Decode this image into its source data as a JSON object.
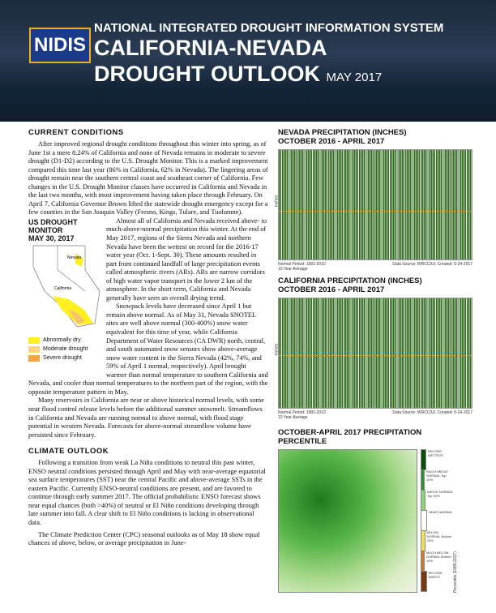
{
  "header": {
    "logo": "NIDIS",
    "org": "NATIONAL INTEGRATED DROUGHT INFORMATION SYSTEM",
    "title1": "CALIFORNIA-NEVADA",
    "title2": "DROUGHT OUTLOOK",
    "date": "MAY 2017"
  },
  "current_conditions": {
    "heading": "CURRENT CONDITIONS",
    "p1": "After improved regional drought conditions throughout this winter into spring, as of June 1st a mere 8.24% of California and none of Nevada remains in moderate to severe drought (D1-D2) according to the U.S. Drought Monitor. This is a marked improvement compared this time last year (86% in California, 62% in Nevada). The lingering areas of drought remain near the southern central coast and southeast corner of California. Few changes in the U.S. Drought Monitor classes have occurred in California and Nevada in the last two months, with most improvement having taken place through February. On April 7, California Governor Brown lifted the statewide drought emergency except for a few counties in the San Joaquin Valley (Fresno, Kings, Tulare, and Tuolumne).",
    "p2": "Almost all of California and Nevada received above- to much-above-normal precipitation this winter. At the end of May 2017, regions of the Sierra Nevada and northern Nevada have been the wettest on record for the 2016-17 water year (Oct. 1-Sept. 30). These amounts resulted in part from continued landfall of large precipitation events called atmospheric rivers (ARs). ARs are narrow corridors of high water vapor transport in the lower 2 km of the atmosphere. In the short term, California and Nevada generally have seen an overall drying trend.",
    "p3": "Snowpack levels have decreased since April 1 but remain above normal. As of May 31, Nevada SNOTEL sites are well above normal (300-400%) snow water equivalent for this time of year, while California Department of Water Resources (CA DWR) north, central, and south automated snow sensors show above-average snow water content in the Sierra Nevada (42%, 74%, and 59% of April 1 normal, respectively). April brought warmer than normal temperature to southern California and Nevada, and cooler than normal temperatures to the northern part of the region, with the opposite temperature pattern in May.",
    "p4": "Many reservoirs in California are near or above historical normal levels, with some near flood control release levels before the additional summer snowmelt. Streamflows in California and Nevada are running normal to above normal, with flood stage potential in western Nevada. Forecasts for above-normal streamflow volume have persisted since February."
  },
  "drought_map": {
    "title": "US DROUGHT MONITOR",
    "date": "MAY 30, 2017",
    "labels": [
      "Nevada",
      "California"
    ],
    "legend": [
      "Abnormally dry",
      "Moderate drought",
      "Severe drought"
    ]
  },
  "climate_outlook": {
    "heading": "CLIMATE OUTLOOK",
    "p1": "Following a transition from weak La Niña conditions to neutral this past winter, ENSO neutral conditions persisted through April and May with near-average equatorial sea surface temperatures (SST) near the central Pacific and above-average SSTs in the eastern Pacific. Currently ENSO-neutral conditions are present, and are favored to continue through early summer 2017. The official probabilistic ENSO forecast shows near equal chances (both >40%) of neutral or El Niño conditions developing through late summer into fall. A clear shift to El Niño conditions is lacking in observational data.",
    "p2": "The Climate Prediction Center (CPC) seasonal outlooks as of May 18 show equal chances of above, below, or average precipitation in June-"
  },
  "figures": [
    {
      "title": "NEVADA PRECIPITATION (INCHES)",
      "subtitle": "OCTOBER 2016 - APRIL 2017",
      "legend": [
        "Normal Period: 1981-2010",
        "10 Year Average"
      ],
      "source": "Data Source: WRCC/UI, Created: 5-24-2017",
      "ylabel": "Inches"
    },
    {
      "title": "CALIFORNIA PRECIPITATION (INCHES)",
      "subtitle": "OCTOBER 2016 - APRIL 2017",
      "legend": [
        "Normal Period: 1981-2010",
        "10 Year Average"
      ],
      "source": "Data Source: WRCC/UI, Created: 5-24-2017",
      "ylabel": "Inches"
    }
  ],
  "percentile_map": {
    "title": "OCTOBER-APRIL 2017 PRECIPITATION PERCENTILE",
    "legend": [
      "RECORD WETTEST",
      "MUCH ABOVE NORMAL Top 10%",
      "ABOVE NORMAL Top 33%",
      "NEAR NORMAL",
      "BELOW NORMAL Bottom 33%",
      "MUCH BELOW NORMAL Bottom 10%",
      "RECORD DRIEST"
    ],
    "axis": "Percentile (1895-2017)"
  }
}
